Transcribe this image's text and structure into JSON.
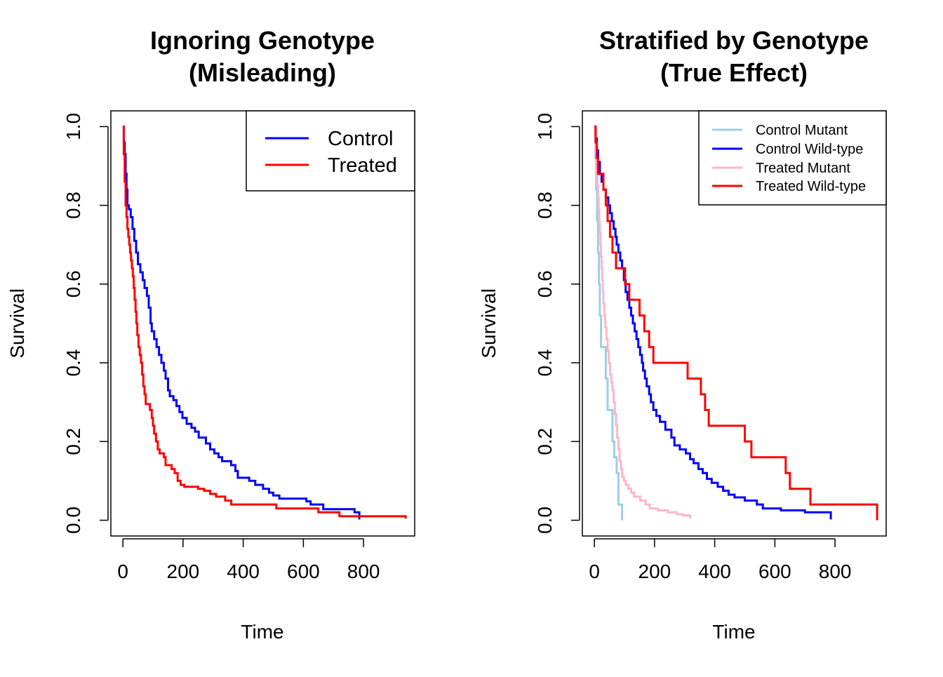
{
  "chart_data": [
    {
      "type": "line",
      "step": true,
      "title_lines": [
        "Ignoring Genotype",
        "(Misleading)"
      ],
      "xlabel": "Time",
      "ylabel": "Survival",
      "xlim": [
        -40,
        970
      ],
      "ylim": [
        -0.04,
        1.04
      ],
      "xticks": [
        0,
        200,
        400,
        600,
        800
      ],
      "yticks": [
        0.0,
        0.2,
        0.4,
        0.6,
        0.8,
        1.0
      ],
      "xtick_labels": [
        "0",
        "200",
        "400",
        "600",
        "800"
      ],
      "ytick_labels": [
        "0.0",
        "0.2",
        "0.4",
        "0.6",
        "0.8",
        "1.0"
      ],
      "grid": false,
      "legend_position": "top-right",
      "series": [
        {
          "name": "Control",
          "color": "#0000FF",
          "points": [
            [
              0,
              1.0
            ],
            [
              3,
              0.96
            ],
            [
              6,
              0.93
            ],
            [
              9,
              0.88
            ],
            [
              12,
              0.84
            ],
            [
              15,
              0.8
            ],
            [
              20,
              0.79
            ],
            [
              26,
              0.77
            ],
            [
              32,
              0.74
            ],
            [
              38,
              0.71
            ],
            [
              44,
              0.68
            ],
            [
              50,
              0.65
            ],
            [
              58,
              0.63
            ],
            [
              66,
              0.61
            ],
            [
              72,
              0.59
            ],
            [
              80,
              0.57
            ],
            [
              86,
              0.54
            ],
            [
              92,
              0.5
            ],
            [
              96,
              0.48
            ],
            [
              104,
              0.46
            ],
            [
              112,
              0.44
            ],
            [
              120,
              0.42
            ],
            [
              128,
              0.4
            ],
            [
              136,
              0.38
            ],
            [
              142,
              0.36
            ],
            [
              150,
              0.33
            ],
            [
              156,
              0.315
            ],
            [
              168,
              0.305
            ],
            [
              178,
              0.29
            ],
            [
              188,
              0.275
            ],
            [
              198,
              0.26
            ],
            [
              212,
              0.245
            ],
            [
              228,
              0.235
            ],
            [
              240,
              0.225
            ],
            [
              252,
              0.21
            ],
            [
              276,
              0.195
            ],
            [
              290,
              0.18
            ],
            [
              304,
              0.17
            ],
            [
              318,
              0.16
            ],
            [
              330,
              0.15
            ],
            [
              360,
              0.14
            ],
            [
              374,
              0.125
            ],
            [
              382,
              0.108
            ],
            [
              420,
              0.1
            ],
            [
              440,
              0.09
            ],
            [
              466,
              0.08
            ],
            [
              486,
              0.07
            ],
            [
              500,
              0.063
            ],
            [
              520,
              0.055
            ],
            [
              540,
              0.055
            ],
            [
              610,
              0.048
            ],
            [
              624,
              0.04
            ],
            [
              666,
              0.028
            ],
            [
              770,
              0.02
            ],
            [
              786,
              0.002
            ]
          ]
        },
        {
          "name": "Treated",
          "color": "#FF0000",
          "points": [
            [
              0,
              1.0
            ],
            [
              3,
              0.93
            ],
            [
              6,
              0.86
            ],
            [
              9,
              0.8
            ],
            [
              12,
              0.77
            ],
            [
              15,
              0.74
            ],
            [
              18,
              0.72
            ],
            [
              21,
              0.7
            ],
            [
              24,
              0.68
            ],
            [
              27,
              0.66
            ],
            [
              30,
              0.64
            ],
            [
              33,
              0.62
            ],
            [
              36,
              0.59
            ],
            [
              39,
              0.56
            ],
            [
              42,
              0.53
            ],
            [
              45,
              0.5
            ],
            [
              48,
              0.47
            ],
            [
              52,
              0.44
            ],
            [
              56,
              0.42
            ],
            [
              60,
              0.4
            ],
            [
              64,
              0.37
            ],
            [
              68,
              0.34
            ],
            [
              72,
              0.32
            ],
            [
              76,
              0.295
            ],
            [
              90,
              0.28
            ],
            [
              96,
              0.26
            ],
            [
              100,
              0.24
            ],
            [
              104,
              0.22
            ],
            [
              110,
              0.2
            ],
            [
              116,
              0.18
            ],
            [
              122,
              0.17
            ],
            [
              136,
              0.16
            ],
            [
              142,
              0.14
            ],
            [
              162,
              0.13
            ],
            [
              172,
              0.12
            ],
            [
              182,
              0.1
            ],
            [
              192,
              0.09
            ],
            [
              204,
              0.085
            ],
            [
              250,
              0.08
            ],
            [
              270,
              0.075
            ],
            [
              290,
              0.067
            ],
            [
              310,
              0.06
            ],
            [
              340,
              0.05
            ],
            [
              360,
              0.04
            ],
            [
              410,
              0.04
            ],
            [
              470,
              0.04
            ],
            [
              510,
              0.03
            ],
            [
              650,
              0.02
            ],
            [
              720,
              0.01
            ],
            [
              940,
              0.004
            ]
          ]
        }
      ]
    },
    {
      "type": "line",
      "step": true,
      "title_lines": [
        "Stratified by Genotype",
        "(True Effect)"
      ],
      "xlabel": "Time",
      "ylabel": "Survival",
      "xlim": [
        -40,
        970
      ],
      "ylim": [
        -0.04,
        1.04
      ],
      "xticks": [
        0,
        200,
        400,
        600,
        800
      ],
      "yticks": [
        0.0,
        0.2,
        0.4,
        0.6,
        0.8,
        1.0
      ],
      "xtick_labels": [
        "0",
        "200",
        "400",
        "600",
        "800"
      ],
      "ytick_labels": [
        "0.0",
        "0.2",
        "0.4",
        "0.6",
        "0.8",
        "1.0"
      ],
      "grid": false,
      "legend_position": "top-right",
      "series": [
        {
          "name": "Control Mutant",
          "color": "#9ACFE6",
          "points": [
            [
              0,
              1.0
            ],
            [
              3,
              0.92
            ],
            [
              6,
              0.84
            ],
            [
              9,
              0.76
            ],
            [
              12,
              0.68
            ],
            [
              15,
              0.6
            ],
            [
              18,
              0.52
            ],
            [
              22,
              0.44
            ],
            [
              30,
              0.44
            ],
            [
              38,
              0.36
            ],
            [
              44,
              0.28
            ],
            [
              52,
              0.28
            ],
            [
              60,
              0.2
            ],
            [
              66,
              0.16
            ],
            [
              74,
              0.12
            ],
            [
              80,
              0.04
            ],
            [
              86,
              0.04
            ],
            [
              92,
              0.0
            ]
          ]
        },
        {
          "name": "Control Wild-type",
          "color": "#0000FF",
          "points": [
            [
              0,
              1.0
            ],
            [
              4,
              0.97
            ],
            [
              8,
              0.94
            ],
            [
              12,
              0.91
            ],
            [
              18,
              0.88
            ],
            [
              24,
              0.86
            ],
            [
              30,
              0.84
            ],
            [
              38,
              0.82
            ],
            [
              46,
              0.8
            ],
            [
              52,
              0.78
            ],
            [
              58,
              0.76
            ],
            [
              64,
              0.74
            ],
            [
              70,
              0.72
            ],
            [
              74,
              0.7
            ],
            [
              80,
              0.68
            ],
            [
              86,
              0.66
            ],
            [
              92,
              0.64
            ],
            [
              98,
              0.61
            ],
            [
              104,
              0.58
            ],
            [
              110,
              0.56
            ],
            [
              116,
              0.54
            ],
            [
              122,
              0.52
            ],
            [
              128,
              0.5
            ],
            [
              134,
              0.48
            ],
            [
              140,
              0.46
            ],
            [
              146,
              0.44
            ],
            [
              152,
              0.42
            ],
            [
              158,
              0.4
            ],
            [
              162,
              0.38
            ],
            [
              168,
              0.36
            ],
            [
              174,
              0.34
            ],
            [
              182,
              0.32
            ],
            [
              188,
              0.3
            ],
            [
              196,
              0.28
            ],
            [
              206,
              0.265
            ],
            [
              218,
              0.25
            ],
            [
              236,
              0.23
            ],
            [
              256,
              0.21
            ],
            [
              266,
              0.19
            ],
            [
              284,
              0.18
            ],
            [
              304,
              0.17
            ],
            [
              318,
              0.155
            ],
            [
              330,
              0.145
            ],
            [
              346,
              0.13
            ],
            [
              360,
              0.12
            ],
            [
              374,
              0.105
            ],
            [
              390,
              0.095
            ],
            [
              410,
              0.085
            ],
            [
              428,
              0.075
            ],
            [
              446,
              0.065
            ],
            [
              466,
              0.058
            ],
            [
              500,
              0.05
            ],
            [
              540,
              0.04
            ],
            [
              560,
              0.03
            ],
            [
              620,
              0.025
            ],
            [
              700,
              0.02
            ],
            [
              786,
              0.002
            ]
          ]
        },
        {
          "name": "Treated Mutant",
          "color": "#FFB6C8",
          "points": [
            [
              0,
              1.0
            ],
            [
              2,
              0.97
            ],
            [
              4,
              0.94
            ],
            [
              6,
              0.91
            ],
            [
              8,
              0.88
            ],
            [
              10,
              0.85
            ],
            [
              12,
              0.82
            ],
            [
              14,
              0.79
            ],
            [
              16,
              0.76
            ],
            [
              18,
              0.73
            ],
            [
              20,
              0.7
            ],
            [
              22,
              0.67
            ],
            [
              24,
              0.64
            ],
            [
              26,
              0.61
            ],
            [
              28,
              0.58
            ],
            [
              30,
              0.55
            ],
            [
              33,
              0.52
            ],
            [
              36,
              0.49
            ],
            [
              40,
              0.46
            ],
            [
              44,
              0.43
            ],
            [
              48,
              0.4
            ],
            [
              52,
              0.37
            ],
            [
              56,
              0.35
            ],
            [
              60,
              0.33
            ],
            [
              64,
              0.3
            ],
            [
              68,
              0.27
            ],
            [
              72,
              0.24
            ],
            [
              76,
              0.21
            ],
            [
              80,
              0.18
            ],
            [
              84,
              0.15
            ],
            [
              88,
              0.13
            ],
            [
              92,
              0.11
            ],
            [
              98,
              0.1
            ],
            [
              104,
              0.09
            ],
            [
              112,
              0.08
            ],
            [
              122,
              0.07
            ],
            [
              132,
              0.06
            ],
            [
              152,
              0.05
            ],
            [
              170,
              0.04
            ],
            [
              184,
              0.03
            ],
            [
              210,
              0.025
            ],
            [
              244,
              0.02
            ],
            [
              274,
              0.015
            ],
            [
              296,
              0.012
            ],
            [
              318,
              0.004
            ]
          ]
        },
        {
          "name": "Treated Wild-type",
          "color": "#FF0000",
          "points": [
            [
              0,
              1.0
            ],
            [
              4,
              0.96
            ],
            [
              8,
              0.92
            ],
            [
              12,
              0.88
            ],
            [
              30,
              0.84
            ],
            [
              38,
              0.8
            ],
            [
              44,
              0.76
            ],
            [
              52,
              0.72
            ],
            [
              60,
              0.68
            ],
            [
              72,
              0.64
            ],
            [
              102,
              0.6
            ],
            [
              116,
              0.56
            ],
            [
              150,
              0.52
            ],
            [
              166,
              0.48
            ],
            [
              182,
              0.44
            ],
            [
              196,
              0.4
            ],
            [
              310,
              0.36
            ],
            [
              354,
              0.32
            ],
            [
              368,
              0.28
            ],
            [
              380,
              0.24
            ],
            [
              500,
              0.2
            ],
            [
              522,
              0.16
            ],
            [
              636,
              0.12
            ],
            [
              650,
              0.08
            ],
            [
              718,
              0.04
            ],
            [
              940,
              0.0
            ]
          ]
        }
      ]
    }
  ]
}
